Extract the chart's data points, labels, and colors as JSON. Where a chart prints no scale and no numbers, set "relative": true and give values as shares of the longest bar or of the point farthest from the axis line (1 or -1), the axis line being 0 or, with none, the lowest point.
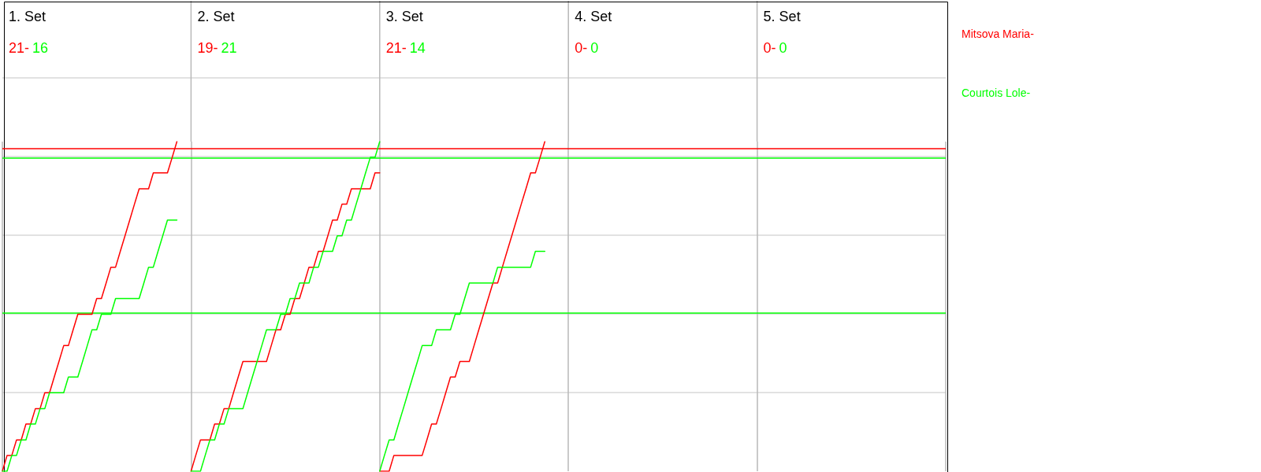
{
  "chart_data": {
    "type": "line",
    "relative": true,
    "categories": [
      null,
      null,
      null,
      null,
      null,
      null,
      null,
      null,
      null,
      null,
      null,
      null,
      null,
      null,
      null,
      null,
      null,
      null,
      null,
      null,
      null,
      null,
      null,
      null,
      null,
      null,
      null,
      null,
      null,
      null,
      null,
      null,
      null,
      null,
      null,
      null,
      null,
      null,
      null,
      null,
      null,
      null,
      null,
      null,
      null,
      null,
      null,
      null,
      null,
      null,
      null,
      null,
      null,
      null,
      null,
      null,
      null,
      null,
      null,
      null,
      null,
      null,
      null,
      null,
      null,
      null,
      null,
      null,
      null,
      null,
      null,
      null,
      null,
      null,
      null,
      null,
      null,
      null,
      null,
      null,
      null,
      null,
      null,
      null,
      null,
      null,
      null,
      null,
      null,
      null,
      null,
      null,
      null,
      null,
      null,
      null,
      null,
      null,
      null,
      null,
      null,
      null,
      null,
      null,
      null,
      null,
      null,
      null,
      null,
      null,
      null,
      null,
      null,
      null,
      null,
      null,
      null,
      null,
      null,
      null,
      null,
      null,
      null,
      null,
      null,
      null,
      null,
      null,
      null,
      null,
      null,
      null,
      null,
      null,
      null,
      null,
      null,
      null,
      null,
      null,
      null,
      null,
      null,
      null,
      null,
      null,
      null,
      null,
      null,
      null,
      null,
      null,
      null,
      null,
      null,
      null,
      null,
      null,
      null,
      null,
      null,
      null,
      null,
      null,
      null,
      null,
      null,
      null,
      null,
      null,
      null,
      null,
      null,
      null,
      null,
      null,
      null,
      null,
      null,
      null,
      null,
      null,
      null,
      null,
      null,
      null,
      null,
      null,
      null,
      null,
      null,
      null,
      null,
      null,
      null,
      null,
      null,
      null,
      null,
      null,
      null
    ],
    "series": [
      {
        "name": "Mitsova Maria-",
        "color": "#ff0000",
        "values": [
          0,
          0.048,
          0.048,
          0.095,
          0.095,
          0.143,
          0.143,
          0.19,
          0.19,
          0.238,
          0.238,
          0.286,
          0.333,
          0.381,
          0.381,
          0.429,
          0.476,
          0.476,
          0.476,
          0.476,
          0.524,
          0.524,
          0.571,
          0.619,
          0.619,
          0.667,
          0.714,
          0.762,
          0.81,
          0.857,
          0.857,
          0.857,
          0.905,
          0.905,
          0.905,
          0.905,
          0.952,
          1,
          null,
          null,
          null,
          null,
          null,
          null,
          null,
          null,
          null,
          null,
          null,
          null,
          null,
          null,
          null,
          null,
          null,
          null,
          null,
          null,
          null,
          null,
          null,
          null,
          null,
          null,
          null,
          null,
          null,
          null,
          null,
          null,
          null,
          null,
          null,
          null,
          null,
          null,
          null,
          null,
          null,
          null,
          null,
          null,
          null,
          null,
          null,
          null,
          null,
          null,
          null,
          null,
          null,
          null,
          null,
          null,
          null,
          null,
          null,
          null,
          null,
          null,
          null,
          null,
          null,
          null,
          null,
          null,
          null,
          null,
          null,
          null,
          null,
          null,
          null,
          null,
          null,
          null,
          null,
          null,
          null,
          null,
          null,
          null,
          null,
          null,
          null,
          null,
          null,
          null,
          null,
          null,
          null,
          null,
          null,
          null,
          null,
          null,
          null,
          null,
          null,
          null,
          null,
          null,
          null,
          null,
          null,
          null,
          null,
          null,
          null,
          null,
          null,
          null,
          null,
          null,
          null,
          null,
          null,
          null,
          null,
          null,
          null,
          null,
          null,
          null,
          null,
          null,
          null,
          null,
          null,
          null,
          null,
          null,
          null,
          null,
          null,
          null,
          null,
          null,
          null,
          null,
          null,
          null,
          null,
          null,
          null,
          null,
          null,
          null,
          null,
          null,
          null,
          null,
          null,
          null,
          null,
          null,
          null,
          null,
          null,
          null,
          null
        ]
      },
      {
        "name": "Courtois Lole-",
        "color": "#00ff00",
        "values": [
          0,
          0,
          0.048,
          0.048,
          0.095,
          0.095,
          0.143,
          0.143,
          0.19,
          0.19,
          0.238,
          0.238,
          0.238,
          0.238,
          0.286,
          0.286,
          0.286,
          0.333,
          0.381,
          0.429,
          0.429,
          0.476,
          0.476,
          0.476,
          0.524,
          0.524,
          0.524,
          0.524,
          0.524,
          0.524,
          0.571,
          0.619,
          0.619,
          0.667,
          0.714,
          0.762,
          0.762,
          0.762,
          null,
          null,
          null,
          null,
          null,
          null,
          null,
          null,
          null,
          null,
          null,
          null,
          null,
          null,
          null,
          null,
          null,
          null,
          null,
          null,
          null,
          null,
          null,
          null,
          null,
          null,
          null,
          null,
          null,
          null,
          null,
          null,
          null,
          null,
          null,
          null,
          null,
          null,
          null,
          null,
          null,
          null,
          null,
          null,
          null,
          null,
          null,
          null,
          null,
          null,
          null,
          null,
          null,
          null,
          null,
          null,
          null,
          null,
          null,
          null,
          null,
          null,
          null,
          null,
          null,
          null,
          null,
          null,
          null,
          null,
          null,
          null,
          null,
          null,
          null,
          null,
          null,
          null,
          null,
          null,
          null,
          null,
          null,
          null,
          null,
          null,
          null,
          null,
          null,
          null,
          null,
          null,
          null,
          null,
          null,
          null,
          null,
          null,
          null,
          null,
          null,
          null,
          null,
          null,
          null,
          null,
          null,
          null,
          null,
          null,
          null,
          null,
          null,
          null,
          null,
          null,
          null,
          null,
          null,
          null,
          null,
          null,
          null,
          null,
          null,
          null,
          null,
          null,
          null,
          null,
          null,
          null,
          null,
          null,
          null,
          null,
          null,
          null,
          null,
          null,
          null,
          null,
          null,
          null,
          null,
          null,
          null,
          null,
          null,
          null,
          null,
          null,
          null,
          null,
          null,
          null,
          null,
          null,
          null,
          null,
          null,
          null,
          null
        ]
      },
      {
        "color": "#ff0000",
        "values": [
          null,
          null,
          null,
          null,
          null,
          null,
          null,
          null,
          null,
          null,
          null,
          null,
          null,
          null,
          null,
          null,
          null,
          null,
          null,
          null,
          null,
          null,
          null,
          null,
          null,
          null,
          null,
          null,
          null,
          null,
          null,
          null,
          null,
          null,
          null,
          null,
          null,
          null,
          null,
          null,
          0,
          0.048,
          0.095,
          0.095,
          0.095,
          0.143,
          0.143,
          0.19,
          0.19,
          0.238,
          0.286,
          0.333,
          0.333,
          0.333,
          0.333,
          0.333,
          0.333,
          0.381,
          0.429,
          0.429,
          0.476,
          0.476,
          0.524,
          0.524,
          0.571,
          0.619,
          0.619,
          0.667,
          0.667,
          0.714,
          0.762,
          0.762,
          0.81,
          0.81,
          0.857,
          0.857,
          0.857,
          0.857,
          0.857,
          0.905,
          0.905,
          null,
          null,
          null,
          null,
          null,
          null,
          null,
          null,
          null,
          null,
          null,
          null,
          null,
          null,
          null,
          null,
          null,
          null,
          null,
          null,
          null,
          null,
          null,
          null,
          null,
          null,
          null,
          null,
          null,
          null,
          null,
          null,
          null,
          null,
          null,
          null,
          null,
          null,
          null,
          null,
          null,
          null,
          null,
          null,
          null,
          null,
          null,
          null,
          null,
          null,
          null,
          null,
          null,
          null,
          null,
          null,
          null,
          null,
          null,
          null,
          null,
          null,
          null,
          null,
          null,
          null,
          null,
          null,
          null,
          null,
          null,
          null,
          null,
          null,
          null,
          null,
          null,
          null,
          null,
          null,
          null,
          null,
          null,
          null,
          null,
          null,
          null,
          null,
          null,
          null,
          null,
          null,
          null,
          null,
          null,
          null,
          null,
          null,
          null,
          null,
          null,
          null,
          null,
          null,
          null,
          null,
          null,
          null,
          null,
          null,
          null,
          null,
          null,
          null,
          null,
          null,
          null,
          null,
          null,
          null
        ]
      },
      {
        "color": "#00ff00",
        "values": [
          null,
          null,
          null,
          null,
          null,
          null,
          null,
          null,
          null,
          null,
          null,
          null,
          null,
          null,
          null,
          null,
          null,
          null,
          null,
          null,
          null,
          null,
          null,
          null,
          null,
          null,
          null,
          null,
          null,
          null,
          null,
          null,
          null,
          null,
          null,
          null,
          null,
          null,
          null,
          null,
          0,
          0,
          0,
          0.048,
          0.095,
          0.095,
          0.143,
          0.143,
          0.19,
          0.19,
          0.19,
          0.19,
          0.238,
          0.286,
          0.333,
          0.381,
          0.429,
          0.429,
          0.429,
          0.476,
          0.476,
          0.524,
          0.524,
          0.571,
          0.571,
          0.571,
          0.619,
          0.619,
          0.667,
          0.667,
          0.667,
          0.714,
          0.714,
          0.762,
          0.762,
          0.81,
          0.857,
          0.905,
          0.952,
          0.952,
          1,
          null,
          null,
          null,
          null,
          null,
          null,
          null,
          null,
          null,
          null,
          null,
          null,
          null,
          null,
          null,
          null,
          null,
          null,
          null,
          null,
          null,
          null,
          null,
          null,
          null,
          null,
          null,
          null,
          null,
          null,
          null,
          null,
          null,
          null,
          null,
          null,
          null,
          null,
          null,
          null,
          null,
          null,
          null,
          null,
          null,
          null,
          null,
          null,
          null,
          null,
          null,
          null,
          null,
          null,
          null,
          null,
          null,
          null,
          null,
          null,
          null,
          null,
          null,
          null,
          null,
          null,
          null,
          null,
          null,
          null,
          null,
          null,
          null,
          null,
          null,
          null,
          null,
          null,
          null,
          null,
          null,
          null,
          null,
          null,
          null,
          null,
          null,
          null,
          null,
          null,
          null,
          null,
          null,
          null,
          null,
          null,
          null,
          null,
          null,
          null,
          null,
          null,
          null,
          null,
          null,
          null,
          null,
          null,
          null,
          null,
          null,
          null,
          null,
          null,
          null,
          null,
          null,
          null,
          null,
          null
        ]
      },
      {
        "color": "#ff0000",
        "values": [
          null,
          null,
          null,
          null,
          null,
          null,
          null,
          null,
          null,
          null,
          null,
          null,
          null,
          null,
          null,
          null,
          null,
          null,
          null,
          null,
          null,
          null,
          null,
          null,
          null,
          null,
          null,
          null,
          null,
          null,
          null,
          null,
          null,
          null,
          null,
          null,
          null,
          null,
          null,
          null,
          null,
          null,
          null,
          null,
          null,
          null,
          null,
          null,
          null,
          null,
          null,
          null,
          null,
          null,
          null,
          null,
          null,
          null,
          null,
          null,
          null,
          null,
          null,
          null,
          null,
          null,
          null,
          null,
          null,
          null,
          null,
          null,
          null,
          null,
          null,
          null,
          null,
          null,
          null,
          null,
          0,
          0,
          0,
          0.048,
          0.048,
          0.048,
          0.048,
          0.048,
          0.048,
          0.048,
          0.095,
          0.143,
          0.143,
          0.19,
          0.238,
          0.286,
          0.286,
          0.333,
          0.333,
          0.333,
          0.381,
          0.429,
          0.476,
          0.524,
          0.571,
          0.571,
          0.619,
          0.667,
          0.714,
          0.762,
          0.81,
          0.857,
          0.905,
          0.905,
          0.952,
          1,
          null,
          null,
          null,
          null,
          null,
          null,
          null,
          null,
          null,
          null,
          null,
          null,
          null,
          null,
          null,
          null,
          null,
          null,
          null,
          null,
          null,
          null,
          null,
          null,
          null,
          null,
          null,
          null,
          null,
          null,
          null,
          null,
          null,
          null,
          null,
          null,
          null,
          null,
          null,
          null,
          null,
          null,
          null,
          null,
          null,
          null,
          null,
          null,
          null,
          null,
          null,
          null,
          null,
          null,
          null,
          null,
          null,
          null,
          null,
          null,
          null,
          null,
          null,
          null,
          null,
          null,
          null,
          null,
          null,
          null,
          null,
          null,
          null,
          null,
          null,
          null,
          null,
          null,
          null,
          null,
          null,
          null,
          null,
          null,
          null
        ]
      },
      {
        "color": "#00ff00",
        "values": [
          null,
          null,
          null,
          null,
          null,
          null,
          null,
          null,
          null,
          null,
          null,
          null,
          null,
          null,
          null,
          null,
          null,
          null,
          null,
          null,
          null,
          null,
          null,
          null,
          null,
          null,
          null,
          null,
          null,
          null,
          null,
          null,
          null,
          null,
          null,
          null,
          null,
          null,
          null,
          null,
          null,
          null,
          null,
          null,
          null,
          null,
          null,
          null,
          null,
          null,
          null,
          null,
          null,
          null,
          null,
          null,
          null,
          null,
          null,
          null,
          null,
          null,
          null,
          null,
          null,
          null,
          null,
          null,
          null,
          null,
          null,
          null,
          null,
          null,
          null,
          null,
          null,
          null,
          null,
          null,
          0,
          0.048,
          0.095,
          0.095,
          0.143,
          0.19,
          0.238,
          0.286,
          0.333,
          0.381,
          0.381,
          0.381,
          0.429,
          0.429,
          0.429,
          0.429,
          0.476,
          0.476,
          0.524,
          0.571,
          0.571,
          0.571,
          0.571,
          0.571,
          0.571,
          0.619,
          0.619,
          0.619,
          0.619,
          0.619,
          0.619,
          0.619,
          0.619,
          0.667,
          0.667,
          0.667,
          null,
          null,
          null,
          null,
          null,
          null,
          null,
          null,
          null,
          null,
          null,
          null,
          null,
          null,
          null,
          null,
          null,
          null,
          null,
          null,
          null,
          null,
          null,
          null,
          null,
          null,
          null,
          null,
          null,
          null,
          null,
          null,
          null,
          null,
          null,
          null,
          null,
          null,
          null,
          null,
          null,
          null,
          null,
          null,
          null,
          null,
          null,
          null,
          null,
          null,
          null,
          null,
          null,
          null,
          null,
          null,
          null,
          null,
          null,
          null,
          null,
          null,
          null,
          null,
          null,
          null,
          null,
          null,
          null,
          null,
          null,
          null,
          null,
          null,
          null,
          null,
          null,
          null,
          null,
          null,
          null,
          null,
          null,
          null,
          null
        ]
      }
    ],
    "tick_labels": false,
    "grid": true,
    "ref_lines": [
      {
        "axis": "y",
        "value": 0.976,
        "color": "#ff0000"
      },
      {
        "axis": "y",
        "value": 0.952,
        "color": "#00ff00"
      },
      {
        "axis": "y",
        "value": 0.476,
        "color": "#00ff00"
      }
    ],
    "annotations": [
      "1. Set",
      "21-",
      "16",
      "2. Set",
      "19-",
      "21",
      "3. Set",
      "21-",
      "14",
      "4. Set",
      "0-",
      "0",
      "5. Set",
      "0-",
      "0"
    ]
  }
}
